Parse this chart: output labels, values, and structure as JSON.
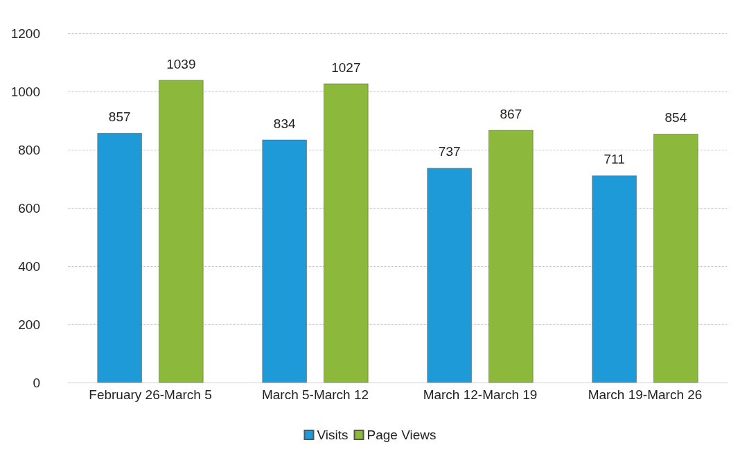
{
  "chart_data": {
    "type": "bar",
    "categories": [
      "February 26-March 5",
      "March 5-March 12",
      "March 12-March 19",
      "March 19-March 26"
    ],
    "series": [
      {
        "name": "Visits",
        "color": "#1f9ad8",
        "values": [
          857,
          834,
          737,
          711
        ]
      },
      {
        "name": "Page Views",
        "color": "#8cb83c",
        "values": [
          1039,
          1027,
          867,
          854
        ]
      }
    ],
    "ylim": [
      0,
      1200
    ],
    "yticks": [
      0,
      200,
      400,
      600,
      800,
      1000,
      1200
    ],
    "grid": "y",
    "legend": "bottom",
    "data_labels": true
  }
}
